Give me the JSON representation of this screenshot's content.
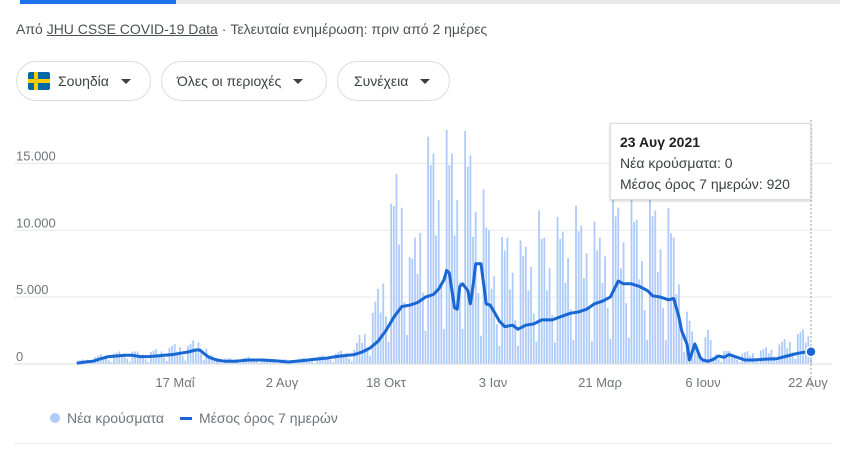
{
  "source": {
    "prefix": "Από",
    "link_text": "JHU CSSE COVID-19 Data",
    "separator": "·",
    "updated": "Τελευταία ενημέρωση: πριν από 2 ημέρες"
  },
  "filters": {
    "country": "Σουηδία",
    "region": "Όλες οι περιοχές",
    "metric": "Συνέχεια"
  },
  "colors": {
    "bars": "#aecbfa",
    "line": "#1967d2",
    "accent": "#1a73e8",
    "grid": "#e8eaed",
    "flag_blue": "#006aa7",
    "flag_yellow": "#fecc00"
  },
  "icons": {
    "flag": "sweden-flag-icon",
    "caret": "caret-down-icon"
  },
  "tooltip": {
    "date": "23 Αυγ 2021",
    "new_cases": "Νέα κρούσματα: 0",
    "avg": "Μέσος όρος 7 ημερών: 920"
  },
  "legend": {
    "bars_label": "Νέα κρούσματα",
    "line_label": "Μέσος όρος 7 ημερών"
  },
  "chart_data": {
    "type": "bar",
    "series": [
      {
        "name": "Νέα κρούσματα",
        "kind": "bar"
      },
      {
        "name": "Μέσος όρος 7 ημερών",
        "kind": "line"
      }
    ],
    "x_ticks": [
      "17 Μαΐ",
      "2 Αυγ",
      "18 Οκτ",
      "3 Ιαν",
      "21 Μαρ",
      "6 Ιουν",
      "22 Αυγ"
    ],
    "y_ticks": [
      "0",
      "5.000",
      "10.000",
      "15.000"
    ],
    "ylim": [
      0,
      17500
    ],
    "grid": true,
    "avg_line": [
      [
        0,
        50
      ],
      [
        6,
        150
      ],
      [
        12,
        200
      ],
      [
        18,
        400
      ],
      [
        24,
        550
      ],
      [
        30,
        600
      ],
      [
        36,
        650
      ],
      [
        42,
        650
      ],
      [
        48,
        550
      ],
      [
        54,
        550
      ],
      [
        60,
        600
      ],
      [
        66,
        650
      ],
      [
        72,
        700
      ],
      [
        78,
        800
      ],
      [
        84,
        900
      ],
      [
        90,
        1050
      ],
      [
        93,
        1050
      ],
      [
        96,
        800
      ],
      [
        100,
        500
      ],
      [
        106,
        300
      ],
      [
        112,
        200
      ],
      [
        120,
        200
      ],
      [
        130,
        300
      ],
      [
        140,
        300
      ],
      [
        150,
        250
      ],
      [
        160,
        150
      ],
      [
        170,
        250
      ],
      [
        180,
        350
      ],
      [
        190,
        450
      ],
      [
        196,
        550
      ],
      [
        200,
        600
      ],
      [
        210,
        700
      ],
      [
        216,
        900
      ],
      [
        222,
        1200
      ],
      [
        228,
        1700
      ],
      [
        234,
        2500
      ],
      [
        240,
        3500
      ],
      [
        246,
        4300
      ],
      [
        252,
        4400
      ],
      [
        258,
        4600
      ],
      [
        264,
        5000
      ],
      [
        270,
        5200
      ],
      [
        274,
        5600
      ],
      [
        278,
        6300
      ],
      [
        280,
        7000
      ],
      [
        282,
        6800
      ],
      [
        284,
        5500
      ],
      [
        286,
        4200
      ],
      [
        288,
        4100
      ],
      [
        290,
        5800
      ],
      [
        292,
        6000
      ],
      [
        296,
        5500
      ],
      [
        298,
        4500
      ],
      [
        300,
        5800
      ],
      [
        302,
        7500
      ],
      [
        306,
        7500
      ],
      [
        308,
        6000
      ],
      [
        310,
        4500
      ],
      [
        313,
        4400
      ],
      [
        316,
        3900
      ],
      [
        320,
        3200
      ],
      [
        324,
        2800
      ],
      [
        330,
        2900
      ],
      [
        334,
        2600
      ],
      [
        340,
        2900
      ],
      [
        346,
        3000
      ],
      [
        352,
        3300
      ],
      [
        360,
        3300
      ],
      [
        368,
        3600
      ],
      [
        374,
        3800
      ],
      [
        380,
        3900
      ],
      [
        386,
        4100
      ],
      [
        392,
        4500
      ],
      [
        398,
        4700
      ],
      [
        404,
        5000
      ],
      [
        410,
        6200
      ],
      [
        414,
        6000
      ],
      [
        420,
        6000
      ],
      [
        426,
        5800
      ],
      [
        432,
        5500
      ],
      [
        436,
        5100
      ],
      [
        442,
        5000
      ],
      [
        448,
        4800
      ],
      [
        452,
        4900
      ],
      [
        456,
        3500
      ],
      [
        458,
        2500
      ],
      [
        462,
        1500
      ],
      [
        464,
        300
      ],
      [
        466,
        900
      ],
      [
        468,
        1500
      ],
      [
        470,
        1000
      ],
      [
        472,
        500
      ],
      [
        474,
        300
      ],
      [
        478,
        200
      ],
      [
        482,
        350
      ],
      [
        486,
        600
      ],
      [
        490,
        500
      ],
      [
        494,
        700
      ],
      [
        500,
        500
      ],
      [
        506,
        300
      ],
      [
        512,
        300
      ],
      [
        520,
        350
      ],
      [
        530,
        400
      ],
      [
        538,
        600
      ],
      [
        546,
        800
      ],
      [
        552,
        900
      ],
      [
        556,
        920
      ]
    ],
    "bar_envelope": [
      [
        0,
        300
      ],
      [
        10,
        500
      ],
      [
        20,
        900
      ],
      [
        30,
        1000
      ],
      [
        40,
        1200
      ],
      [
        48,
        1000
      ],
      [
        55,
        1100
      ],
      [
        62,
        1300
      ],
      [
        70,
        1500
      ],
      [
        78,
        1800
      ],
      [
        85,
        1700
      ],
      [
        92,
        2300
      ],
      [
        96,
        2100
      ],
      [
        100,
        800
      ],
      [
        110,
        500
      ],
      [
        120,
        500
      ],
      [
        130,
        600
      ],
      [
        140,
        500
      ],
      [
        150,
        400
      ],
      [
        160,
        400
      ],
      [
        170,
        500
      ],
      [
        180,
        600
      ],
      [
        190,
        800
      ],
      [
        200,
        1100
      ],
      [
        210,
        1300
      ],
      [
        215,
        2700
      ],
      [
        220,
        3500
      ],
      [
        225,
        5100
      ],
      [
        230,
        7000
      ],
      [
        234,
        10200
      ],
      [
        238,
        12000
      ],
      [
        242,
        15800
      ],
      [
        246,
        16700
      ],
      [
        248,
        13200
      ],
      [
        250,
        14500
      ],
      [
        252,
        8000
      ],
      [
        256,
        10500
      ],
      [
        260,
        14000
      ],
      [
        264,
        16500
      ],
      [
        268,
        17500
      ],
      [
        276,
        17500
      ],
      [
        290,
        17500
      ],
      [
        300,
        17300
      ],
      [
        310,
        12000
      ],
      [
        318,
        8500
      ],
      [
        326,
        10500
      ],
      [
        334,
        9000
      ],
      [
        342,
        10000
      ],
      [
        350,
        11500
      ],
      [
        356,
        10000
      ],
      [
        364,
        11000
      ],
      [
        370,
        11000
      ],
      [
        376,
        12000
      ],
      [
        382,
        11500
      ],
      [
        388,
        12000
      ],
      [
        394,
        10000
      ],
      [
        400,
        11500
      ],
      [
        406,
        13000
      ],
      [
        412,
        13000
      ],
      [
        420,
        13000
      ],
      [
        428,
        11000
      ],
      [
        436,
        13000
      ],
      [
        444,
        12000
      ],
      [
        450,
        11500
      ],
      [
        456,
        8500
      ],
      [
        460,
        6000
      ],
      [
        466,
        2700
      ],
      [
        472,
        1500
      ],
      [
        478,
        3000
      ],
      [
        482,
        1000
      ],
      [
        490,
        1200
      ],
      [
        500,
        900
      ],
      [
        510,
        1100
      ],
      [
        520,
        1300
      ],
      [
        530,
        1700
      ],
      [
        538,
        2200
      ],
      [
        546,
        2800
      ],
      [
        556,
        3000
      ]
    ]
  }
}
